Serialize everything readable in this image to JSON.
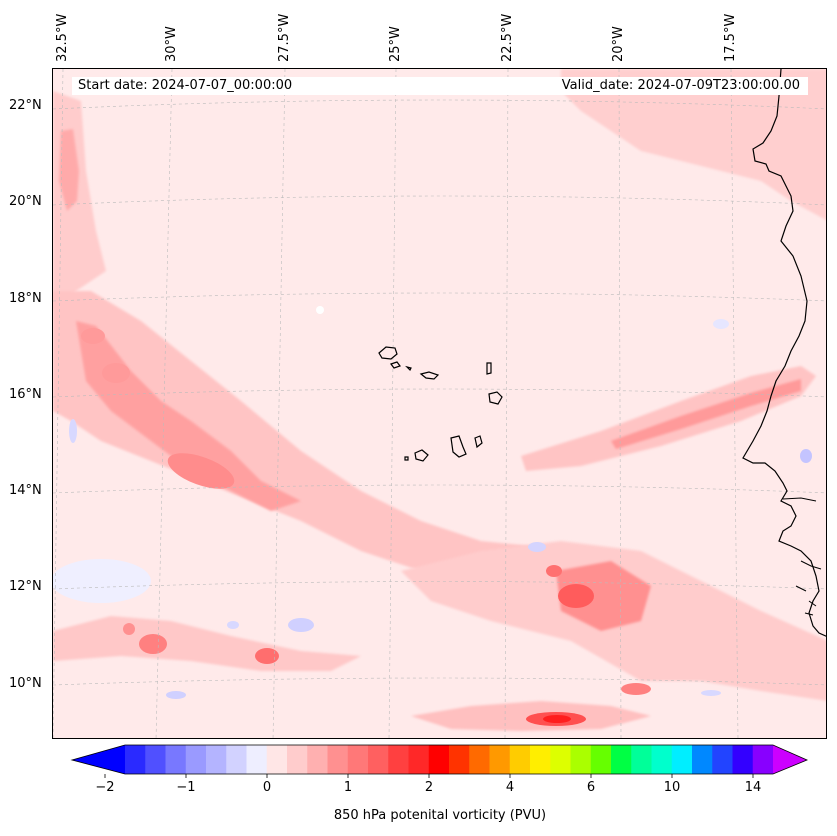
{
  "map": {
    "start_date": "Start date: 2024-07-07_00:00:00",
    "valid_date": "Valid_date: 2024-07-09T23:00:00.00",
    "lon_labels": [
      "32.5°W",
      "30°W",
      "27.5°W",
      "25°W",
      "22.5°W",
      "20°W",
      "17.5°W"
    ],
    "lat_labels": [
      "22°N",
      "20°N",
      "18°N",
      "16°N",
      "14°N",
      "12°N",
      "10°N"
    ]
  },
  "colorbar": {
    "label": "850 hPa potenital vorticity (PVU)",
    "ticks": [
      "−2",
      "−1",
      "0",
      "1",
      "2",
      "4",
      "6",
      "10",
      "14"
    ],
    "colors": [
      "#0000ff",
      "#2a2aff",
      "#5050ff",
      "#7878ff",
      "#9a9aff",
      "#b4b4ff",
      "#d2d2ff",
      "#eeeeff",
      "#ffe6e6",
      "#ffcccc",
      "#ffb0b0",
      "#ff9090",
      "#ff7878",
      "#ff6060",
      "#ff4040",
      "#ff2828",
      "#ff0000",
      "#ff3300",
      "#ff6a00",
      "#ff9900",
      "#ffcc00",
      "#ffee00",
      "#ddff00",
      "#aaff00",
      "#66ff00",
      "#00ff44",
      "#00ff99",
      "#00ffcc",
      "#00eeff",
      "#0088ff",
      "#2244ff",
      "#3300ff",
      "#8800ff",
      "#cc00ff"
    ]
  }
}
